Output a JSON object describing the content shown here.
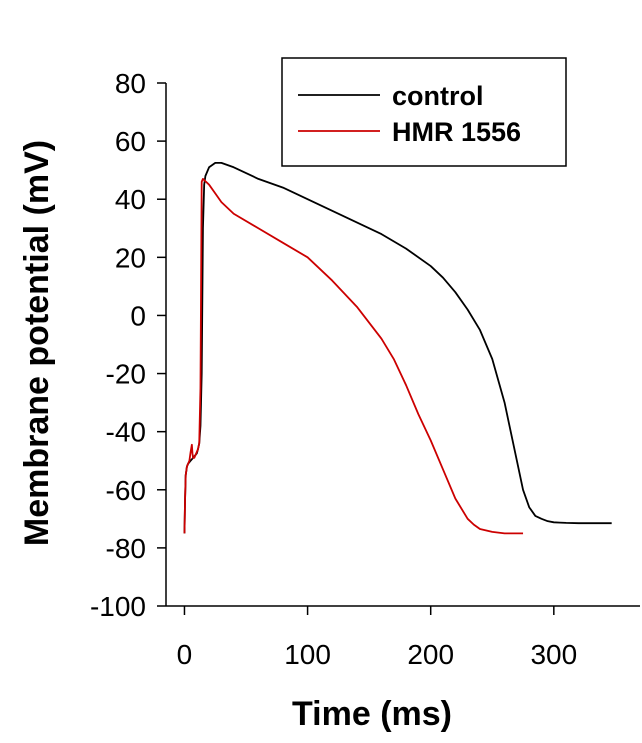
{
  "chart_data": {
    "type": "line",
    "xlabel": "Time (ms)",
    "ylabel": "Membrane potential (mV)",
    "xlim": [
      -15,
      370
    ],
    "ylim": [
      -100,
      80
    ],
    "xticks": [
      0,
      100,
      200,
      300
    ],
    "yticks": [
      -100,
      -80,
      -60,
      -40,
      -20,
      0,
      20,
      40,
      60,
      80
    ],
    "grid": false,
    "legend_position": "top-right",
    "series": [
      {
        "name": "control",
        "color": "#000000",
        "x": [
          0,
          0.5,
          1,
          2,
          3,
          4,
          5,
          6,
          7,
          8,
          9,
          10,
          11,
          12,
          13,
          14,
          15,
          16,
          17,
          20,
          25,
          30,
          40,
          50,
          60,
          80,
          100,
          120,
          140,
          160,
          180,
          200,
          210,
          220,
          230,
          240,
          250,
          260,
          265,
          270,
          275,
          280,
          285,
          290,
          295,
          300,
          305,
          310,
          320,
          330,
          340,
          347
        ],
        "y": [
          -75,
          -63,
          -55,
          -52,
          -51,
          -50.5,
          -50,
          -49.5,
          -49,
          -48.5,
          -48,
          -47.5,
          -46,
          -44,
          -38,
          -20,
          30,
          45,
          48,
          51,
          52.5,
          52.5,
          51,
          49,
          47,
          44,
          40,
          36,
          32,
          28,
          23,
          17,
          13,
          8,
          2,
          -5,
          -15,
          -30,
          -40,
          -50,
          -60,
          -66,
          -69,
          -70,
          -70.8,
          -71.2,
          -71.3,
          -71.4,
          -71.5,
          -71.5,
          -71.5,
          -71.5
        ]
      },
      {
        "name": "HMR 1556",
        "color": "#cc0000",
        "x": [
          0,
          0.5,
          1,
          2,
          3,
          4,
          5,
          6,
          6.5,
          7,
          8,
          9,
          10,
          11,
          12,
          13,
          14,
          15,
          20,
          25,
          30,
          40,
          60,
          80,
          100,
          120,
          140,
          160,
          170,
          180,
          190,
          200,
          210,
          220,
          230,
          235,
          240,
          250,
          260,
          270,
          275
        ],
        "y": [
          -75,
          -63,
          -55,
          -52,
          -51,
          -50,
          -47,
          -44.5,
          -47.5,
          -49,
          -49,
          -48,
          -47,
          -46,
          -44,
          -25,
          46,
          47,
          45,
          42,
          39,
          35,
          30,
          25,
          20,
          12,
          3,
          -8,
          -15,
          -24,
          -34,
          -43,
          -53,
          -63,
          -70,
          -72,
          -73.5,
          -74.5,
          -75,
          -75,
          -75
        ]
      }
    ]
  }
}
